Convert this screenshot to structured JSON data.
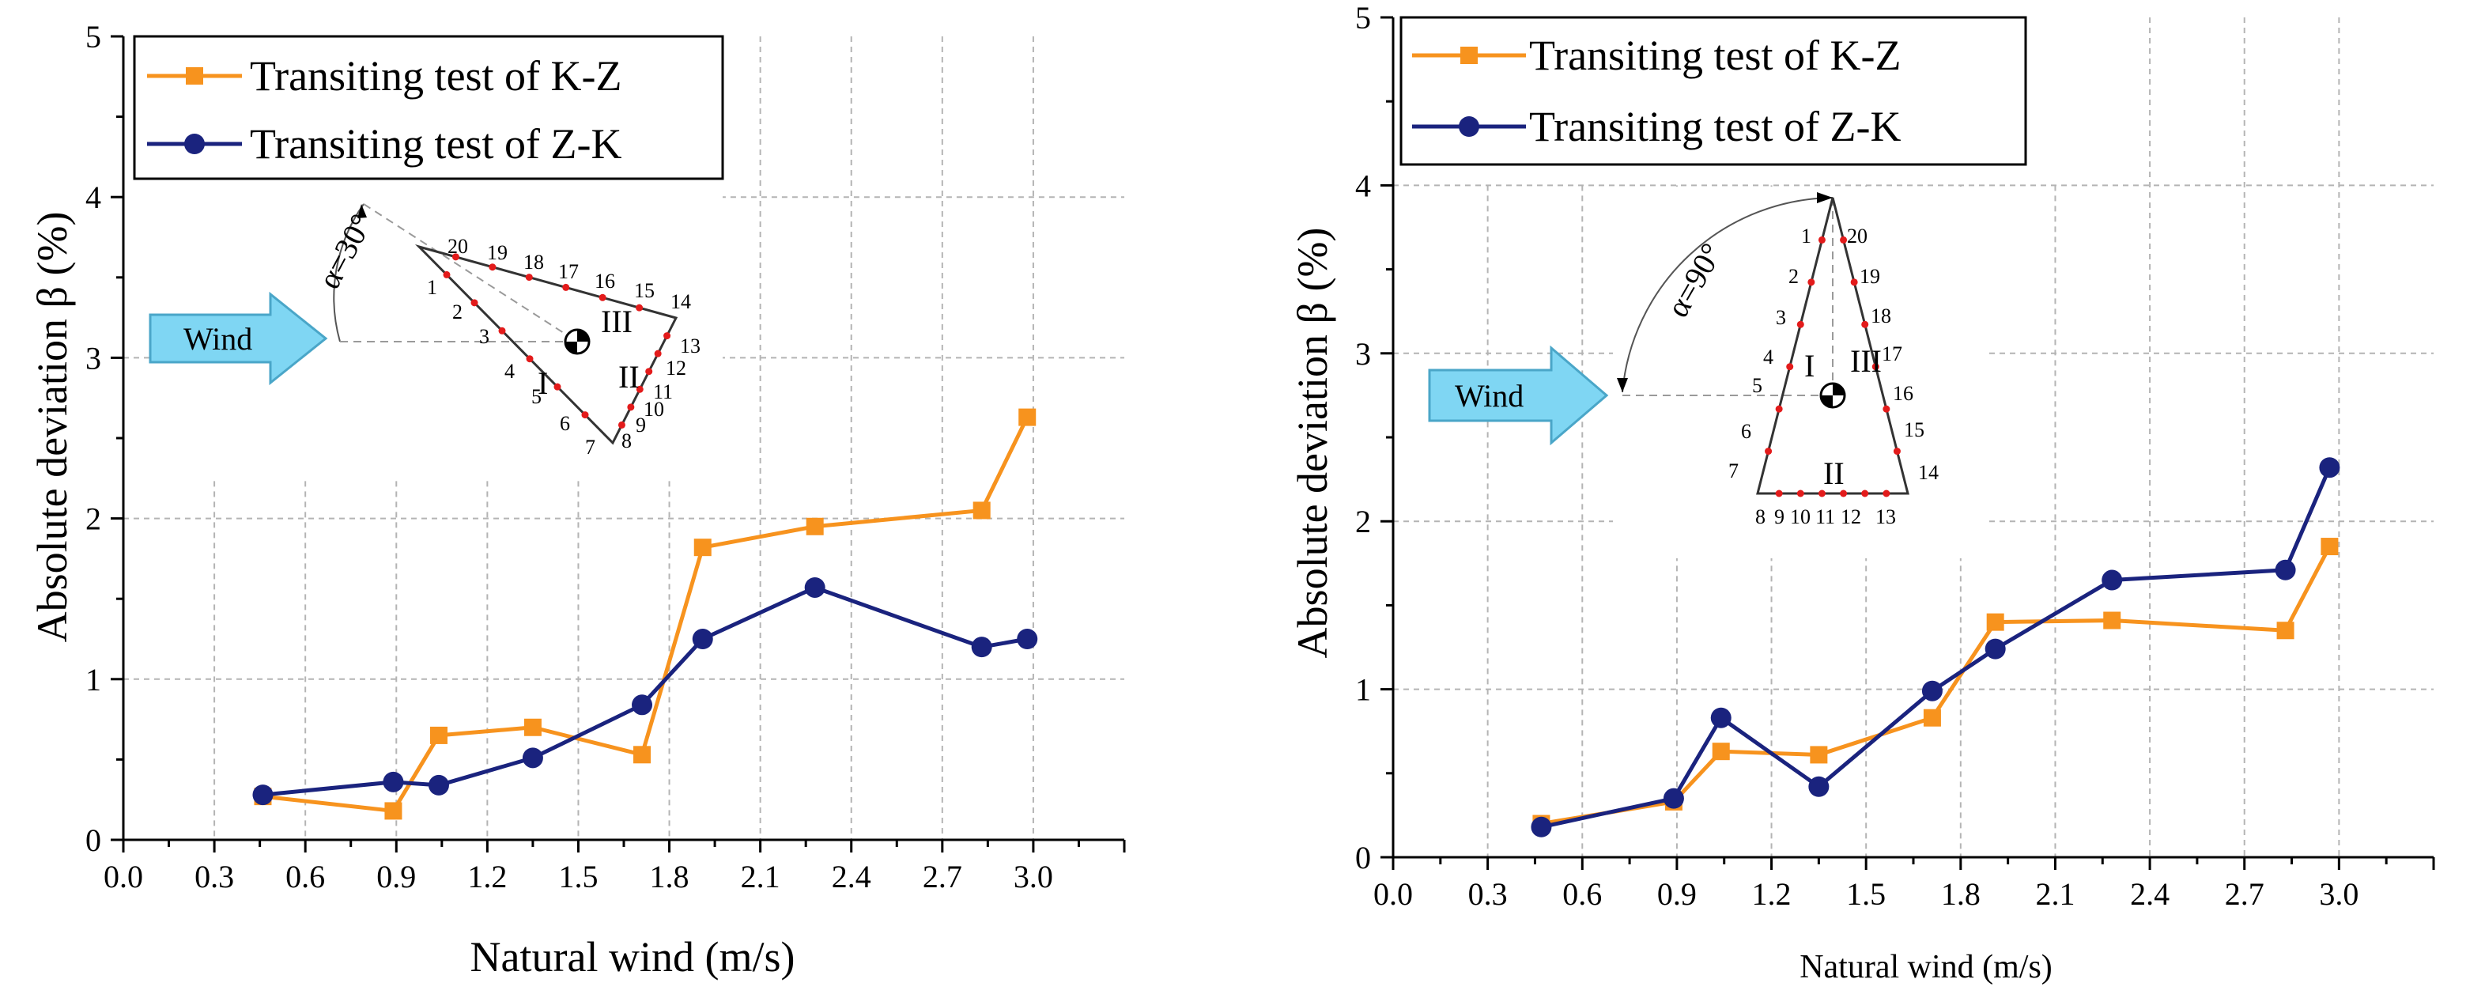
{
  "chart_data": [
    {
      "type": "line",
      "title": "",
      "xlabel": "Natural wind (m/s)",
      "ylabel": "Absolute deviation β (%)",
      "xlim": [
        0.0,
        3.3
      ],
      "ylim": [
        0,
        5
      ],
      "x_ticks": [
        "0.0",
        "0.3",
        "0.6",
        "0.9",
        "1.2",
        "1.5",
        "1.8",
        "2.1",
        "2.4",
        "2.7",
        "3.0"
      ],
      "y_ticks": [
        "0",
        "1",
        "2",
        "3",
        "4",
        "5"
      ],
      "grid": true,
      "legend_position": "top-left",
      "series": [
        {
          "name": "Transiting test of K-Z",
          "color": "#f7931e",
          "marker": "square",
          "x": [
            0.46,
            0.89,
            1.04,
            1.35,
            1.71,
            1.91,
            2.28,
            2.83,
            2.98
          ],
          "y": [
            0.27,
            0.18,
            0.65,
            0.7,
            0.53,
            1.82,
            1.95,
            2.05,
            2.63
          ]
        },
        {
          "name": "Transiting test of Z-K",
          "color": "#1a237e",
          "marker": "circle",
          "x": [
            0.46,
            0.89,
            1.04,
            1.35,
            1.71,
            1.91,
            2.28,
            2.83,
            2.98
          ],
          "y": [
            0.28,
            0.36,
            0.34,
            0.51,
            0.84,
            1.25,
            1.57,
            1.2,
            1.25
          ]
        }
      ],
      "inset": {
        "angle_label": "α=30°",
        "wind_label": "Wind",
        "zone_labels": [
          "I",
          "II",
          "III"
        ],
        "point_numbers": [
          "1",
          "2",
          "3",
          "4",
          "5",
          "6",
          "7",
          "8",
          "9",
          "10",
          "11",
          "12",
          "13",
          "14",
          "15",
          "16",
          "17",
          "18",
          "19",
          "20"
        ]
      }
    },
    {
      "type": "line",
      "title": "",
      "xlabel": "Natural wind (m/s)",
      "ylabel": "Absolute deviation β (%)",
      "xlim": [
        0.0,
        3.3
      ],
      "ylim": [
        0,
        5
      ],
      "x_ticks": [
        "0.0",
        "0.3",
        "0.6",
        "0.9",
        "1.2",
        "1.5",
        "1.8",
        "2.1",
        "2.4",
        "2.7",
        "3.0"
      ],
      "y_ticks": [
        "0",
        "1",
        "2",
        "3",
        "4",
        "5"
      ],
      "grid": true,
      "legend_position": "top-left",
      "series": [
        {
          "name": "Transiting test of K-Z",
          "color": "#f7931e",
          "marker": "square",
          "x": [
            0.47,
            0.89,
            1.04,
            1.35,
            1.71,
            1.91,
            2.28,
            2.83,
            2.97
          ],
          "y": [
            0.2,
            0.33,
            0.63,
            0.61,
            0.83,
            1.4,
            1.41,
            1.35,
            1.85
          ]
        },
        {
          "name": "Transiting test of Z-K",
          "color": "#1a237e",
          "marker": "circle",
          "x": [
            0.47,
            0.89,
            1.04,
            1.35,
            1.71,
            1.91,
            2.28,
            2.83,
            2.97
          ],
          "y": [
            0.18,
            0.35,
            0.83,
            0.42,
            0.99,
            1.24,
            1.65,
            1.71,
            2.32
          ]
        }
      ],
      "inset": {
        "angle_label": "α=90°",
        "wind_label": "Wind",
        "zone_labels": [
          "I",
          "II",
          "III"
        ],
        "point_numbers": [
          "1",
          "2",
          "3",
          "4",
          "5",
          "6",
          "7",
          "8",
          "9",
          "10",
          "11",
          "12",
          "13",
          "14",
          "15",
          "16",
          "17",
          "18",
          "19",
          "20"
        ]
      }
    }
  ]
}
